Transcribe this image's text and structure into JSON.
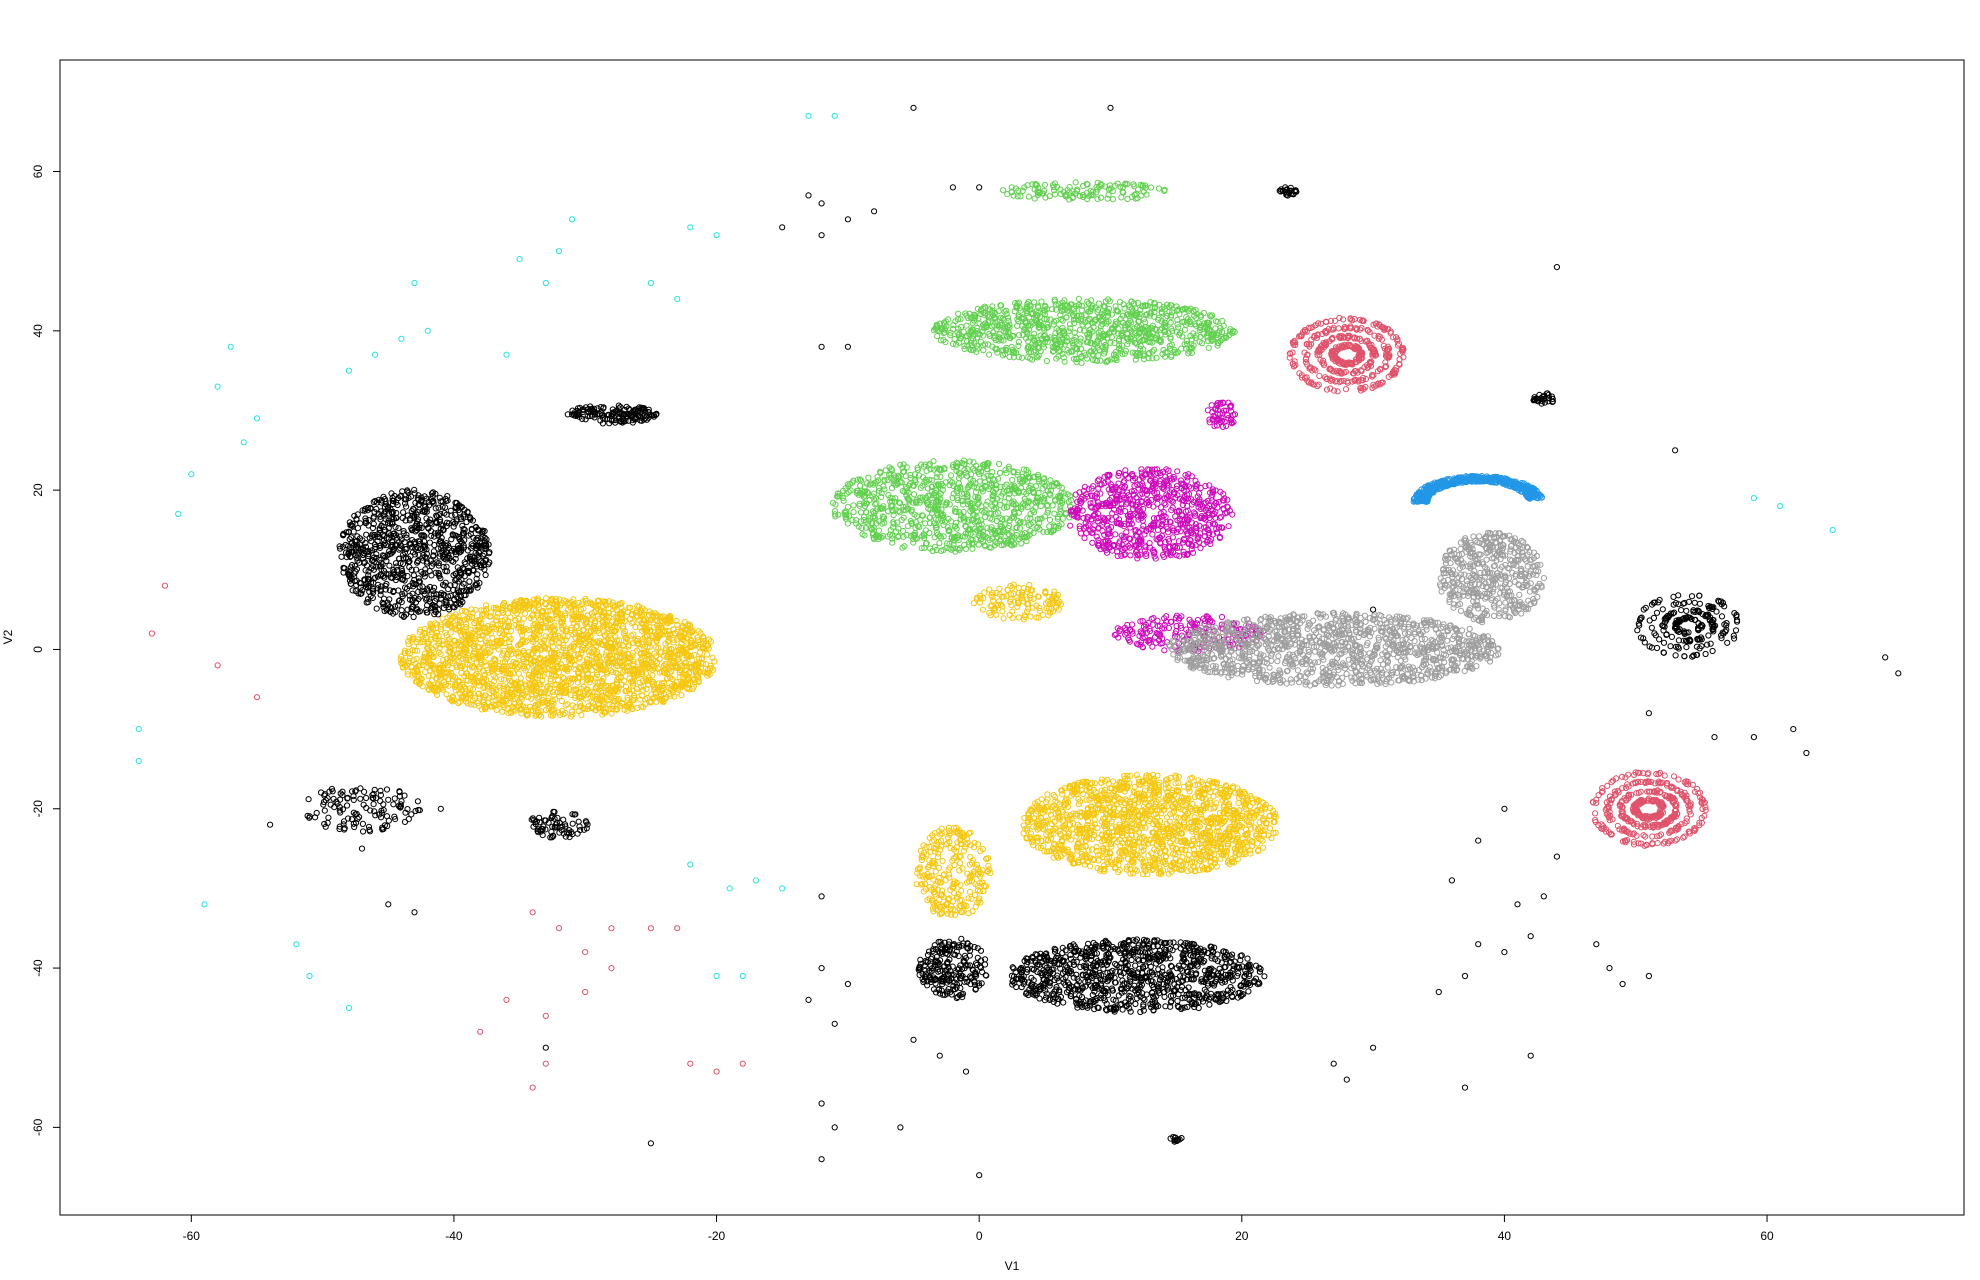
{
  "chart_data": {
    "type": "scatter",
    "title": "",
    "xlabel": "V1",
    "ylabel": "V2",
    "xlim": [
      -70,
      75
    ],
    "ylim": [
      -71,
      74
    ],
    "x_ticks": [
      "-60",
      "-40",
      "-20",
      "0",
      "20",
      "40",
      "60"
    ],
    "y_ticks": [
      "-60",
      "-40",
      "-20",
      "0",
      "20",
      "40",
      "60"
    ],
    "grid": false,
    "legend": "none",
    "marker": "open-circle",
    "colors": {
      "black": "#000000",
      "red": "#DF536B",
      "green": "#61D04F",
      "blue": "#2297E6",
      "cyan": "#28E2E5",
      "magenta": "#CD0BBC",
      "yellow": "#F5C710",
      "gray": "#9E9E9E"
    },
    "clusters": [
      {
        "color": "yellow",
        "cx": -32,
        "cy": -1,
        "sx": 10.5,
        "sy": 6.5,
        "shape": "ellipse",
        "n": 2200
      },
      {
        "color": "yellow",
        "cx": 13,
        "cy": -22,
        "sx": 8.5,
        "sy": 5.5,
        "shape": "ellipse",
        "n": 1400
      },
      {
        "color": "yellow",
        "cx": -2,
        "cy": -28,
        "sx": 2.5,
        "sy": 5,
        "shape": "ellipse",
        "n": 250
      },
      {
        "color": "yellow",
        "cx": 3,
        "cy": 6,
        "sx": 3,
        "sy": 2,
        "shape": "ellipse",
        "n": 120
      },
      {
        "color": "black",
        "cx": -43,
        "cy": 12,
        "sx": 5,
        "sy": 7,
        "shape": "ellipse",
        "n": 900
      },
      {
        "color": "black",
        "cx": 12,
        "cy": -41,
        "sx": 8.5,
        "sy": 4,
        "shape": "ellipse",
        "n": 950
      },
      {
        "color": "black",
        "cx": -2,
        "cy": -40,
        "sx": 2.3,
        "sy": 3.3,
        "shape": "ellipse",
        "n": 220
      },
      {
        "color": "black",
        "cx": -28,
        "cy": 29.5,
        "sx": 3,
        "sy": 1,
        "shape": "ellipse",
        "n": 150
      },
      {
        "color": "black",
        "cx": -47,
        "cy": -20,
        "sx": 4,
        "sy": 2.5,
        "shape": "ellipse",
        "n": 120
      },
      {
        "color": "black",
        "cx": -32,
        "cy": -22,
        "sx": 2,
        "sy": 1.5,
        "shape": "ellipse",
        "n": 70
      },
      {
        "color": "black",
        "cx": 43,
        "cy": 31.5,
        "sx": 0.8,
        "sy": 0.6,
        "shape": "ellipse",
        "n": 30
      },
      {
        "color": "black",
        "cx": 23.5,
        "cy": 57.5,
        "sx": 0.6,
        "sy": 0.5,
        "shape": "ellipse",
        "n": 25
      },
      {
        "color": "black",
        "cx": 15,
        "cy": -61.5,
        "sx": 0.4,
        "sy": 0.3,
        "shape": "ellipse",
        "n": 12
      },
      {
        "color": "green",
        "cx": -2,
        "cy": 18,
        "sx": 8,
        "sy": 5,
        "shape": "ellipse",
        "n": 900
      },
      {
        "color": "green",
        "cx": 8,
        "cy": 40,
        "sx": 10,
        "sy": 3.5,
        "shape": "ellipse",
        "n": 900
      },
      {
        "color": "green",
        "cx": 8,
        "cy": 57.5,
        "sx": 5.5,
        "sy": 1,
        "shape": "ellipse",
        "n": 120
      },
      {
        "color": "magenta",
        "cx": 13,
        "cy": 17,
        "sx": 5.5,
        "sy": 5,
        "shape": "ellipse",
        "n": 700
      },
      {
        "color": "magenta",
        "cx": 16,
        "cy": 2,
        "sx": 5,
        "sy": 2,
        "shape": "ellipse",
        "n": 200
      },
      {
        "color": "magenta",
        "cx": 18.5,
        "cy": 29.5,
        "sx": 1,
        "sy": 1.5,
        "shape": "ellipse",
        "n": 50
      },
      {
        "color": "gray",
        "cx": 27,
        "cy": 0,
        "sx": 11,
        "sy": 4,
        "shape": "ellipse",
        "n": 1200
      },
      {
        "color": "gray",
        "cx": 39,
        "cy": 9,
        "sx": 3.5,
        "sy": 5,
        "shape": "ellipse",
        "n": 450
      },
      {
        "color": "blue",
        "cx": 38,
        "cy": 20,
        "sx": 4.5,
        "sy": 3,
        "shape": "arc",
        "n": 450
      },
      {
        "color": "red",
        "cx": 28,
        "cy": 37,
        "sx": 4.2,
        "sy": 4.5,
        "shape": "rings",
        "n": 450
      },
      {
        "color": "red",
        "cx": 51,
        "cy": -20,
        "sx": 4.2,
        "sy": 4.5,
        "shape": "rings",
        "n": 450
      },
      {
        "color": "black",
        "cx": 54,
        "cy": 3,
        "sx": 3.8,
        "sy": 3.8,
        "shape": "rings",
        "n": 220
      }
    ],
    "scatter_points": [
      {
        "color": "red",
        "points": [
          [
            -34,
            -33
          ],
          [
            -32,
            -35
          ],
          [
            -30,
            -38
          ],
          [
            -28,
            -40
          ],
          [
            -30,
            -43
          ],
          [
            -33,
            -46
          ],
          [
            -36,
            -44
          ],
          [
            -38,
            -48
          ],
          [
            -33,
            -52
          ],
          [
            -34,
            -55
          ],
          [
            -28,
            -35
          ],
          [
            -25,
            -35
          ],
          [
            -23,
            -35
          ],
          [
            -22,
            -52
          ],
          [
            -20,
            -53
          ],
          [
            -18,
            -52
          ],
          [
            -63,
            2
          ],
          [
            -62,
            8
          ],
          [
            -58,
            -2
          ],
          [
            -55,
            -6
          ]
        ]
      },
      {
        "color": "cyan",
        "points": [
          [
            -61,
            17
          ],
          [
            -60,
            22
          ],
          [
            -58,
            33
          ],
          [
            -57,
            38
          ],
          [
            -56,
            26
          ],
          [
            -55,
            29
          ],
          [
            -64,
            -10
          ],
          [
            -64,
            -14
          ],
          [
            -59,
            -32
          ],
          [
            -52,
            -37
          ],
          [
            -51,
            -41
          ],
          [
            -48,
            -45
          ],
          [
            -48,
            35
          ],
          [
            -46,
            37
          ],
          [
            -44,
            39
          ],
          [
            -42,
            40
          ],
          [
            -43,
            46
          ],
          [
            -35,
            49
          ],
          [
            -33,
            46
          ],
          [
            -32,
            50
          ],
          [
            -31,
            54
          ],
          [
            -25,
            46
          ],
          [
            -23,
            44
          ],
          [
            -22,
            53
          ],
          [
            -20,
            52
          ],
          [
            -36,
            37
          ],
          [
            -13,
            67
          ],
          [
            -11,
            67
          ],
          [
            -22,
            -27
          ],
          [
            -19,
            -30
          ],
          [
            -17,
            -29
          ],
          [
            -15,
            -30
          ],
          [
            -20,
            -41
          ],
          [
            -18,
            -41
          ],
          [
            59,
            19
          ],
          [
            61,
            18
          ],
          [
            65,
            15
          ]
        ]
      },
      {
        "color": "black",
        "points": [
          [
            -13,
            57
          ],
          [
            -12,
            56
          ],
          [
            -15,
            53
          ],
          [
            -12,
            52
          ],
          [
            -10,
            54
          ],
          [
            -8,
            55
          ],
          [
            -2,
            58
          ],
          [
            0,
            58
          ],
          [
            -5,
            68
          ],
          [
            10,
            68
          ],
          [
            -12,
            -31
          ],
          [
            -12,
            -40
          ],
          [
            -13,
            -44
          ],
          [
            -10,
            -42
          ],
          [
            -11,
            -47
          ],
          [
            -12,
            -57
          ],
          [
            -11,
            -60
          ],
          [
            -12,
            -64
          ],
          [
            -6,
            -60
          ],
          [
            -25,
            -62
          ],
          [
            0,
            -66
          ],
          [
            -5,
            -49
          ],
          [
            -3,
            -51
          ],
          [
            -1,
            -53
          ],
          [
            30,
            -50
          ],
          [
            28,
            -54
          ],
          [
            27,
            -52
          ],
          [
            35,
            -43
          ],
          [
            37,
            -41
          ],
          [
            38,
            -37
          ],
          [
            40,
            -38
          ],
          [
            41,
            -32
          ],
          [
            42,
            -36
          ],
          [
            36,
            -29
          ],
          [
            38,
            -24
          ],
          [
            40,
            -20
          ],
          [
            44,
            -26
          ],
          [
            43,
            -31
          ],
          [
            37,
            -55
          ],
          [
            42,
            -51
          ],
          [
            47,
            -37
          ],
          [
            48,
            -40
          ],
          [
            49,
            -42
          ],
          [
            51,
            -41
          ],
          [
            44,
            48
          ],
          [
            53,
            25
          ],
          [
            56,
            -11
          ],
          [
            59,
            -11
          ],
          [
            62,
            -10
          ],
          [
            63,
            -13
          ],
          [
            69,
            -1
          ],
          [
            70,
            -3
          ],
          [
            51,
            -8
          ],
          [
            -45,
            -32
          ],
          [
            -43,
            -33
          ],
          [
            -47,
            -25
          ],
          [
            -54,
            -22
          ],
          [
            -41,
            -20
          ],
          [
            -33,
            -50
          ],
          [
            -10,
            38
          ],
          [
            -12,
            38
          ],
          [
            30,
            5
          ]
        ]
      }
    ]
  }
}
